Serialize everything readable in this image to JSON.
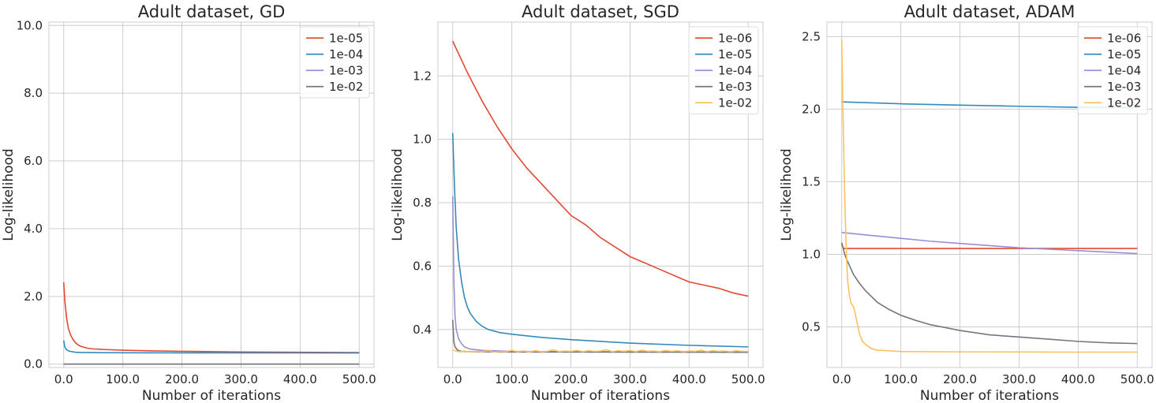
{
  "chart_data": [
    {
      "type": "line",
      "title": "Adult dataset, GD",
      "xlabel": "Number of iterations",
      "ylabel": "Log-likelihood",
      "xlim": [
        -25,
        525
      ],
      "ylim": [
        -0.1,
        10.1
      ],
      "xticks": [
        0,
        100,
        200,
        300,
        400,
        500
      ],
      "xtick_labels": [
        "0.0",
        "100.0",
        "200.0",
        "300.0",
        "400.0",
        "500.0"
      ],
      "yticks": [
        0,
        2,
        4,
        6,
        8,
        10
      ],
      "ytick_labels": [
        "0.0",
        "2.0",
        "4.0",
        "6.0",
        "8.0",
        "10.0"
      ],
      "grid": true,
      "legend_position": "top-right",
      "series": [
        {
          "name": "1e-05",
          "color": "#e24a33",
          "x": [
            0,
            2,
            5,
            8,
            12,
            16,
            20,
            25,
            30,
            40,
            50,
            70,
            100,
            150,
            200,
            300,
            400,
            500
          ],
          "y": [
            2.42,
            1.85,
            1.35,
            1.05,
            0.85,
            0.72,
            0.63,
            0.56,
            0.52,
            0.47,
            0.45,
            0.43,
            0.41,
            0.39,
            0.38,
            0.36,
            0.35,
            0.34
          ]
        },
        {
          "name": "1e-04",
          "color": "#348abd",
          "x": [
            0,
            2,
            5,
            10,
            20,
            30,
            50,
            100,
            200,
            300,
            400,
            500
          ],
          "y": [
            0.7,
            0.5,
            0.42,
            0.38,
            0.35,
            0.345,
            0.34,
            0.335,
            0.333,
            0.332,
            0.331,
            0.33
          ]
        },
        {
          "name": "1e-03",
          "color": "#988ed5",
          "x": [
            0,
            500
          ],
          "y": [
            0.0,
            0.0
          ]
        },
        {
          "name": "1e-02",
          "color": "#777777",
          "x": [
            0,
            500
          ],
          "y": [
            0.0,
            0.0
          ]
        }
      ]
    },
    {
      "type": "line",
      "title": "Adult dataset, SGD",
      "xlabel": "Number of iterations",
      "ylabel": "Log-likelihood",
      "xlim": [
        -25,
        525
      ],
      "ylim": [
        0.28,
        1.37
      ],
      "xticks": [
        0,
        100,
        200,
        300,
        400,
        500
      ],
      "xtick_labels": [
        "0.0",
        "100.0",
        "200.0",
        "300.0",
        "400.0",
        "500.0"
      ],
      "yticks": [
        0.4,
        0.6,
        0.8,
        1.0,
        1.2
      ],
      "ytick_labels": [
        "0.4",
        "0.6",
        "0.8",
        "1.0",
        "1.2"
      ],
      "grid": true,
      "legend_position": "top-right",
      "series": [
        {
          "name": "1e-06",
          "color": "#e24a33",
          "x": [
            0,
            25,
            50,
            75,
            100,
            125,
            150,
            175,
            200,
            225,
            250,
            275,
            300,
            325,
            350,
            375,
            400,
            425,
            450,
            475,
            500
          ],
          "y": [
            1.31,
            1.21,
            1.12,
            1.04,
            0.97,
            0.91,
            0.86,
            0.81,
            0.76,
            0.73,
            0.69,
            0.66,
            0.63,
            0.61,
            0.59,
            0.57,
            0.55,
            0.54,
            0.53,
            0.515,
            0.505
          ]
        },
        {
          "name": "1e-05",
          "color": "#348abd",
          "x": [
            0,
            3,
            6,
            10,
            15,
            20,
            25,
            30,
            40,
            50,
            60,
            80,
            100,
            150,
            200,
            300,
            400,
            500
          ],
          "y": [
            1.02,
            0.85,
            0.72,
            0.62,
            0.55,
            0.5,
            0.47,
            0.45,
            0.425,
            0.41,
            0.4,
            0.39,
            0.385,
            0.375,
            0.368,
            0.357,
            0.35,
            0.345
          ]
        },
        {
          "name": "1e-04",
          "color": "#988ed5",
          "x": [
            0,
            2,
            4,
            6,
            10,
            15,
            20,
            30,
            50,
            100,
            200,
            500
          ],
          "y": [
            0.82,
            0.55,
            0.44,
            0.4,
            0.37,
            0.355,
            0.345,
            0.338,
            0.334,
            0.331,
            0.33,
            0.329
          ]
        },
        {
          "name": "1e-03",
          "color": "#777777",
          "x": [
            0,
            2,
            4,
            8,
            15,
            30,
            100,
            500
          ],
          "y": [
            0.43,
            0.36,
            0.345,
            0.335,
            0.331,
            0.33,
            0.329,
            0.328
          ]
        },
        {
          "name": "1e-02",
          "color": "#fbc15e",
          "x": [
            0,
            10,
            20,
            30,
            40,
            50,
            60,
            70,
            80,
            90,
            100,
            110,
            120,
            130,
            140,
            150,
            160,
            170,
            180,
            190,
            200,
            210,
            220,
            230,
            240,
            250,
            260,
            270,
            280,
            290,
            300,
            310,
            320,
            330,
            340,
            350,
            360,
            370,
            380,
            390,
            400,
            410,
            420,
            430,
            440,
            450,
            460,
            470,
            480,
            490,
            500
          ],
          "y": [
            0.335,
            0.33,
            0.332,
            0.329,
            0.331,
            0.33,
            0.333,
            0.329,
            0.331,
            0.33,
            0.334,
            0.33,
            0.332,
            0.329,
            0.333,
            0.33,
            0.331,
            0.336,
            0.33,
            0.332,
            0.331,
            0.334,
            0.33,
            0.333,
            0.331,
            0.332,
            0.336,
            0.33,
            0.333,
            0.331,
            0.334,
            0.33,
            0.335,
            0.331,
            0.332,
            0.33,
            0.334,
            0.331,
            0.333,
            0.33,
            0.332,
            0.331,
            0.335,
            0.33,
            0.333,
            0.331,
            0.332,
            0.33,
            0.333,
            0.331,
            0.331
          ]
        }
      ]
    },
    {
      "type": "line",
      "title": "Adult dataset, ADAM",
      "xlabel": "Number of iterations",
      "ylabel": "Log-likelihood",
      "xlim": [
        -25,
        525
      ],
      "ylim": [
        0.22,
        2.6
      ],
      "xticks": [
        0,
        100,
        200,
        300,
        400,
        500
      ],
      "xtick_labels": [
        "0.0",
        "100.0",
        "200.0",
        "300.0",
        "400.0",
        "500.0"
      ],
      "yticks": [
        0.5,
        1.0,
        1.5,
        2.0,
        2.5
      ],
      "ytick_labels": [
        "0.5",
        "1.0",
        "1.5",
        "2.0",
        "2.5"
      ],
      "grid": true,
      "legend_position": "top-right",
      "series": [
        {
          "name": "1e-06",
          "color": "#e24a33",
          "x": [
            0,
            3,
            500
          ],
          "y": [
            1.07,
            1.04,
            1.04
          ]
        },
        {
          "name": "1e-05",
          "color": "#348abd",
          "x": [
            0,
            100,
            200,
            300,
            400,
            500
          ],
          "y": [
            2.05,
            2.037,
            2.028,
            2.02,
            2.013,
            2.01
          ]
        },
        {
          "name": "1e-04",
          "color": "#988ed5",
          "x": [
            0,
            50,
            100,
            150,
            200,
            250,
            300,
            350,
            400,
            450,
            500
          ],
          "y": [
            1.15,
            1.13,
            1.11,
            1.09,
            1.075,
            1.06,
            1.045,
            1.035,
            1.025,
            1.015,
            1.005
          ]
        },
        {
          "name": "1e-03",
          "color": "#777777",
          "x": [
            0,
            5,
            10,
            20,
            30,
            40,
            50,
            60,
            80,
            100,
            125,
            150,
            200,
            250,
            300,
            350,
            400,
            450,
            500
          ],
          "y": [
            1.08,
            1.0,
            0.95,
            0.86,
            0.8,
            0.75,
            0.71,
            0.67,
            0.62,
            0.58,
            0.545,
            0.515,
            0.475,
            0.445,
            0.43,
            0.415,
            0.4,
            0.39,
            0.385
          ]
        },
        {
          "name": "1e-02",
          "color": "#fbc15e",
          "x": [
            0,
            2,
            4,
            6,
            8,
            10,
            13,
            16,
            20,
            25,
            30,
            35,
            40,
            50,
            60,
            80,
            100,
            200,
            300,
            400,
            500
          ],
          "y": [
            2.48,
            2.0,
            1.6,
            1.25,
            1.0,
            0.82,
            0.72,
            0.66,
            0.64,
            0.55,
            0.45,
            0.4,
            0.38,
            0.35,
            0.34,
            0.335,
            0.33,
            0.328,
            0.327,
            0.326,
            0.326
          ]
        }
      ]
    }
  ]
}
